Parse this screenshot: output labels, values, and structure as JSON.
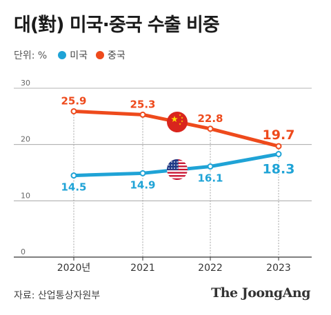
{
  "title": "대(對) 미국·중국 수출 비중",
  "legend": {
    "unit": "단위: %",
    "us": "미국",
    "china": "중국"
  },
  "source": "자료: 산업통상자원부",
  "brand": "The JoongAng",
  "colors": {
    "us": "#1fa3d6",
    "china": "#ee4a1c"
  },
  "chart_data": {
    "type": "line",
    "categories": [
      "2020년",
      "2021",
      "2022",
      "2023"
    ],
    "ylim": [
      0,
      30
    ],
    "yticks": [
      "0",
      "10",
      "20",
      "30"
    ],
    "series": [
      {
        "name": "중국",
        "values": [
          25.9,
          25.3,
          22.8,
          19.7
        ],
        "labels": [
          "25.9",
          "25.3",
          "22.8",
          "19.7"
        ],
        "icon": "china-flag-icon"
      },
      {
        "name": "미국",
        "values": [
          14.5,
          14.9,
          16.1,
          18.3
        ],
        "labels": [
          "14.5",
          "14.9",
          "16.1",
          "18.3"
        ],
        "icon": "us-flag-icon"
      }
    ],
    "grid": true
  }
}
